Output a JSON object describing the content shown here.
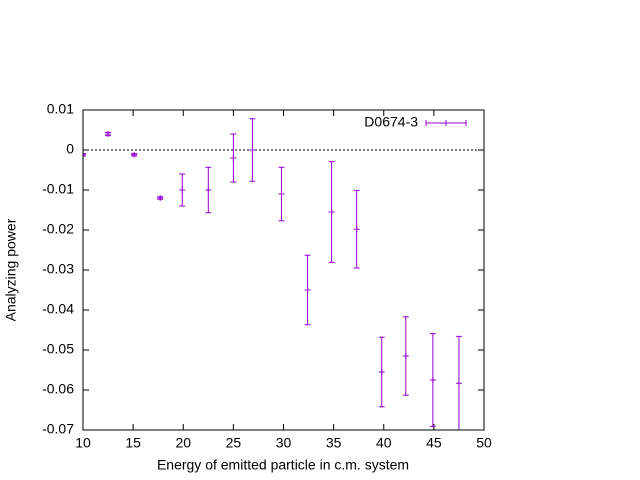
{
  "chart_data": {
    "type": "errorbar",
    "xlabel": "Energy of emitted particle in c.m. system",
    "ylabel": "Analyzing power",
    "x": [
      10.0,
      12.5,
      15.1,
      17.7,
      19.9,
      22.5,
      25.0,
      26.9,
      29.8,
      32.4,
      34.8,
      37.3,
      39.8,
      42.2,
      44.9,
      47.5
    ],
    "series": [
      {
        "name": "D0674-3",
        "color": "#9400d3",
        "values": [
          -0.0012,
          0.004,
          -0.0012,
          -0.012,
          -0.01,
          -0.01,
          -0.002,
          0.0,
          -0.011,
          -0.035,
          -0.0155,
          -0.0198,
          -0.0555,
          -0.0515,
          -0.0575,
          -0.0583
        ],
        "errors": [
          0.0003,
          0.0004,
          0.0003,
          0.0003,
          0.004,
          0.0057,
          0.006,
          0.0078,
          0.0067,
          0.0087,
          0.0126,
          0.0097,
          0.0087,
          0.0098,
          0.0116,
          0.0117
        ]
      }
    ],
    "xlim": [
      10,
      50
    ],
    "xticks": [
      10,
      15,
      20,
      25,
      30,
      35,
      40,
      45,
      50
    ],
    "ylim": [
      -0.07,
      0.01
    ],
    "yticks": [
      0.01,
      0,
      -0.01,
      -0.02,
      -0.03,
      -0.04,
      -0.05,
      -0.06,
      -0.07
    ],
    "legend": "top-right"
  }
}
